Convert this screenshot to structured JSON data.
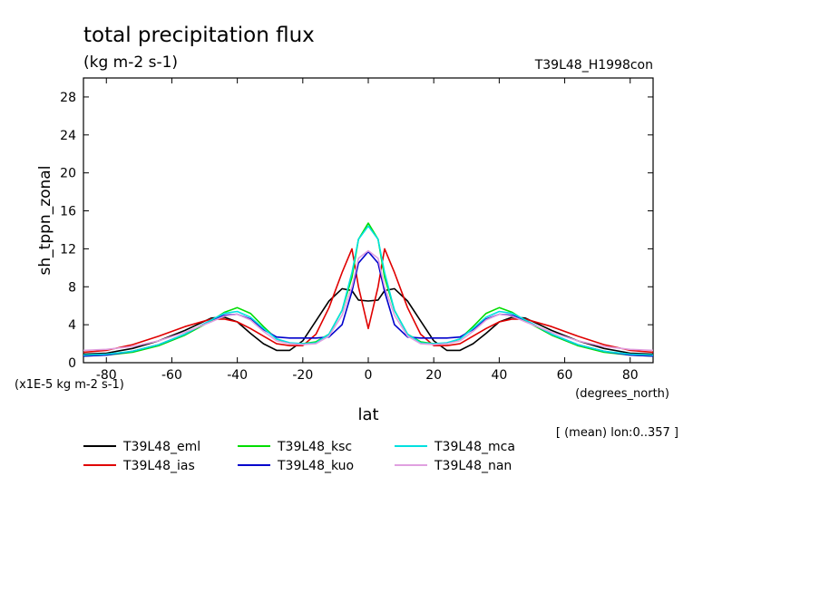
{
  "chart_data": {
    "type": "line",
    "title": "total precipitation flux",
    "units": "(kg m-2 s-1)",
    "experiment": "T39L48_H1998con",
    "xlabel": "lat",
    "xunits": "(degrees_north)",
    "ylabel": "sh_tppn_zonal",
    "yscale_note": "(x1E-5 kg m-2 s-1)",
    "footnote": "[ (mean) lon:0..357 ]",
    "xlim": [
      -87,
      87
    ],
    "ylim": [
      0,
      30
    ],
    "xticks": [
      -80,
      -60,
      -40,
      -20,
      0,
      20,
      40,
      60,
      80
    ],
    "yticks": [
      0,
      4,
      8,
      12,
      16,
      20,
      24,
      28
    ],
    "xtick_labels": [
      "-80",
      "-60",
      "-40",
      "-20",
      "0",
      "20",
      "40",
      "60",
      "80"
    ],
    "ytick_labels": [
      "0",
      "4",
      "8",
      "12",
      "16",
      "20",
      "24",
      "28"
    ],
    "x": [
      -87,
      -80,
      -72,
      -64,
      -56,
      -48,
      -44,
      -40,
      -36,
      -32,
      -28,
      -24,
      -20,
      -16,
      -12,
      -8,
      -5,
      -3,
      0,
      3,
      5,
      8,
      12,
      16,
      20,
      24,
      28,
      32,
      36,
      40,
      44,
      48,
      56,
      64,
      72,
      80,
      87
    ],
    "series": [
      {
        "name": "T39L48_eml",
        "color": "#000000",
        "values": [
          0.9,
          1.0,
          1.5,
          2.3,
          3.4,
          4.7,
          4.8,
          4.3,
          3.1,
          2.0,
          1.3,
          1.3,
          2.3,
          4.4,
          6.5,
          7.8,
          7.6,
          6.6,
          6.5,
          6.6,
          7.6,
          7.8,
          6.5,
          4.4,
          2.3,
          1.3,
          1.3,
          2.0,
          3.1,
          4.3,
          4.8,
          4.7,
          3.4,
          2.3,
          1.5,
          1.0,
          0.9
        ]
      },
      {
        "name": "T39L48_ias",
        "color": "#e00000",
        "values": [
          1.1,
          1.3,
          1.9,
          2.8,
          3.8,
          4.6,
          4.6,
          4.3,
          3.6,
          2.8,
          2.0,
          1.8,
          1.8,
          3.0,
          5.8,
          9.5,
          12.0,
          8.0,
          3.6,
          8.0,
          12.0,
          9.5,
          5.8,
          3.0,
          1.8,
          1.8,
          2.0,
          2.8,
          3.6,
          4.3,
          4.6,
          4.6,
          3.8,
          2.8,
          1.9,
          1.3,
          1.1
        ]
      },
      {
        "name": "T39L48_ksc",
        "color": "#00dd00",
        "values": [
          0.7,
          0.8,
          1.1,
          1.8,
          2.9,
          4.4,
          5.3,
          5.8,
          5.2,
          3.8,
          2.5,
          2.0,
          2.0,
          2.2,
          3.0,
          5.5,
          9.0,
          13.0,
          14.7,
          13.0,
          9.0,
          5.5,
          3.0,
          2.2,
          2.0,
          2.0,
          2.5,
          3.8,
          5.2,
          5.8,
          5.3,
          4.4,
          2.9,
          1.8,
          1.1,
          0.8,
          0.7
        ]
      },
      {
        "name": "T39L48_kuo",
        "color": "#0000cc",
        "values": [
          0.7,
          0.8,
          1.2,
          1.9,
          3.0,
          4.5,
          5.0,
          5.1,
          4.6,
          3.5,
          2.7,
          2.6,
          2.6,
          2.6,
          2.7,
          4.0,
          7.5,
          10.5,
          11.7,
          10.5,
          7.5,
          4.0,
          2.7,
          2.6,
          2.6,
          2.6,
          2.7,
          3.5,
          4.6,
          5.1,
          5.0,
          4.5,
          3.0,
          1.9,
          1.2,
          0.8,
          0.7
        ]
      },
      {
        "name": "T39L48_mca",
        "color": "#00e0e0",
        "values": [
          0.8,
          0.9,
          1.2,
          1.9,
          3.0,
          4.5,
          5.2,
          5.4,
          4.8,
          3.6,
          2.5,
          2.1,
          2.0,
          2.1,
          3.0,
          5.5,
          9.5,
          13.0,
          14.4,
          13.0,
          9.5,
          5.5,
          3.0,
          2.1,
          2.0,
          2.1,
          2.5,
          3.6,
          4.8,
          5.4,
          5.2,
          4.5,
          3.0,
          1.9,
          1.2,
          0.9,
          0.8
        ]
      },
      {
        "name": "T39L48_nan",
        "color": "#e0a0e0",
        "values": [
          1.3,
          1.4,
          1.7,
          2.3,
          3.2,
          4.3,
          4.9,
          5.1,
          4.5,
          3.3,
          2.3,
          2.0,
          1.9,
          2.0,
          2.8,
          5.0,
          8.0,
          11.0,
          11.8,
          11.0,
          8.0,
          5.0,
          2.8,
          2.0,
          1.9,
          2.0,
          2.3,
          3.3,
          4.5,
          5.1,
          4.9,
          4.3,
          3.2,
          2.3,
          1.7,
          1.4,
          1.3
        ]
      }
    ]
  }
}
